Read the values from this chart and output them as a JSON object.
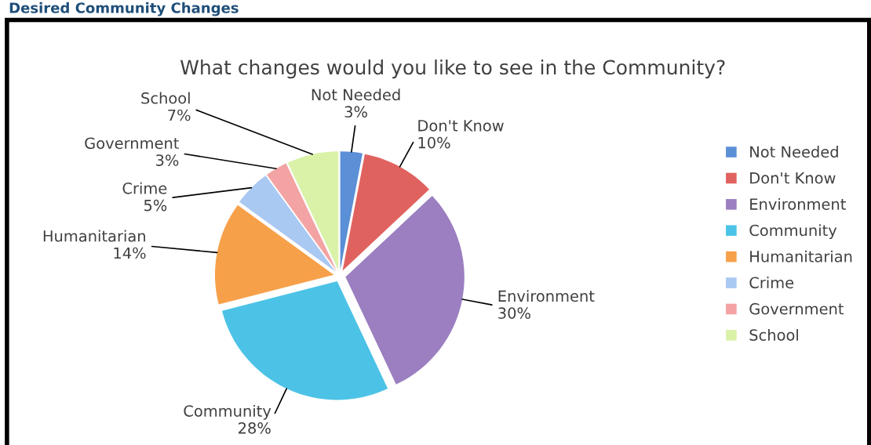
{
  "chart_data": {
    "type": "pie",
    "title": "What changes would you like to see in the Community?",
    "annotations": [
      "Desired Community Changes"
    ],
    "categories": [
      "Not Needed",
      "Don't Know",
      "Environment",
      "Community",
      "Humanitarian",
      "Crime",
      "Government",
      "School"
    ],
    "values": [
      3,
      10,
      30,
      28,
      14,
      5,
      3,
      7
    ],
    "value_labels": [
      "3%",
      "10%",
      "30%",
      "28%",
      "14%",
      "5%",
      "3%",
      "7%"
    ],
    "colors": [
      "#5b8fd6",
      "#e0625f",
      "#9b7fc0",
      "#4cc3e6",
      "#f7a04a",
      "#a9c8f2",
      "#f3a3a3",
      "#d9f2a8"
    ],
    "legend": "right"
  }
}
